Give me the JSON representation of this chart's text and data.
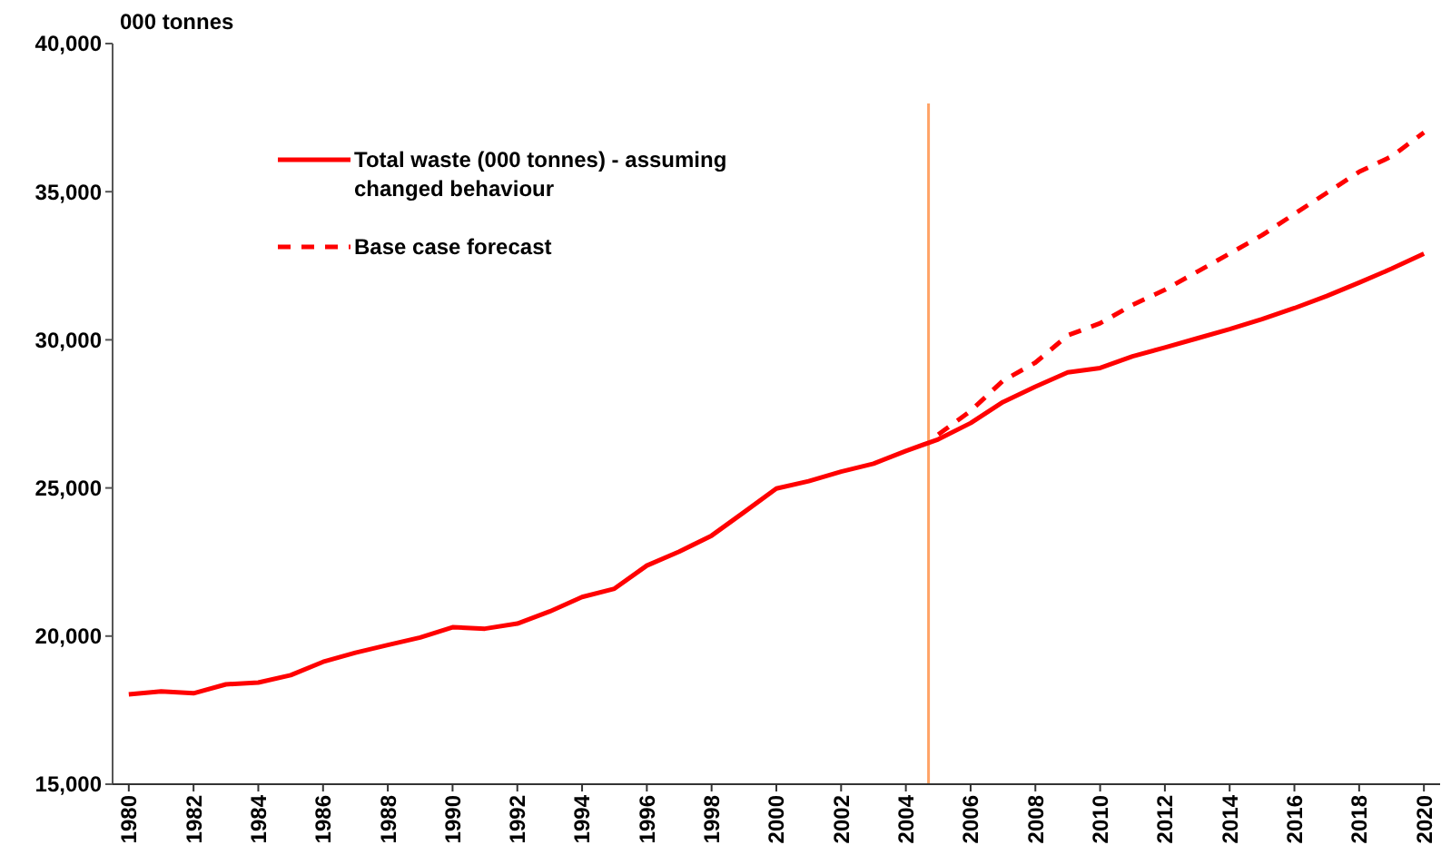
{
  "chart_data": {
    "type": "line",
    "ylabel": "000 tonnes",
    "x": [
      1980,
      1981,
      1982,
      1983,
      1984,
      1985,
      1986,
      1987,
      1988,
      1989,
      1990,
      1991,
      1992,
      1993,
      1994,
      1995,
      1996,
      1997,
      1998,
      1999,
      2000,
      2001,
      2002,
      2003,
      2004,
      2005,
      2006,
      2007,
      2008,
      2009,
      2010,
      2011,
      2012,
      2013,
      2014,
      2015,
      2016,
      2017,
      2018,
      2019,
      2020
    ],
    "series": [
      {
        "name": "Total waste (000 tonnes) - assuming changed behaviour",
        "color": "#ff0000",
        "line_style": "solid",
        "values": [
          18030,
          18130,
          18070,
          18370,
          18430,
          18680,
          19130,
          19440,
          19700,
          19950,
          20300,
          20250,
          20420,
          20830,
          21320,
          21600,
          22380,
          22850,
          23390,
          24180,
          24980,
          25230,
          25550,
          25820,
          26250,
          26640,
          27190,
          27900,
          28420,
          28900,
          29050,
          29440,
          29740,
          30050,
          30360,
          30700,
          31070,
          31480,
          31930,
          32400,
          32910
        ]
      },
      {
        "name": "Base case forecast",
        "color": "#ff0000",
        "line_style": "dashed",
        "x": [
          2005,
          2006,
          2007,
          2008,
          2009,
          2010,
          2011,
          2012,
          2013,
          2014,
          2015,
          2016,
          2017,
          2018,
          2019,
          2020
        ],
        "values": [
          26800,
          27600,
          28620,
          29230,
          30150,
          30560,
          31180,
          31690,
          32300,
          32910,
          33530,
          34250,
          34960,
          35670,
          36190,
          37000
        ]
      }
    ],
    "xlim": [
      1979.5,
      2020.5
    ],
    "xticks": [
      {
        "value": 1980,
        "label": "1980"
      },
      {
        "value": 1982,
        "label": "1982"
      },
      {
        "value": 1984,
        "label": "1984"
      },
      {
        "value": 1986,
        "label": "1986"
      },
      {
        "value": 1988,
        "label": "1988"
      },
      {
        "value": 1990,
        "label": "1990"
      },
      {
        "value": 1992,
        "label": "1992"
      },
      {
        "value": 1994,
        "label": "1994"
      },
      {
        "value": 1996,
        "label": "1996"
      },
      {
        "value": 1998,
        "label": "1998"
      },
      {
        "value": 2000,
        "label": "2000"
      },
      {
        "value": 2002,
        "label": "2002"
      },
      {
        "value": 2004,
        "label": "2004"
      },
      {
        "value": 2006,
        "label": "2006"
      },
      {
        "value": 2008,
        "label": "2008"
      },
      {
        "value": 2010,
        "label": "2010"
      },
      {
        "value": 2012,
        "label": "2012"
      },
      {
        "value": 2014,
        "label": "2014"
      },
      {
        "value": 2016,
        "label": "2016"
      },
      {
        "value": 2018,
        "label": "2018"
      },
      {
        "value": 2020,
        "label": "2020"
      }
    ],
    "ylim": [
      15000,
      40000
    ],
    "yticks": [
      {
        "value": 15000,
        "label": "15,000"
      },
      {
        "value": 20000,
        "label": "20,000"
      },
      {
        "value": 25000,
        "label": "25,000"
      },
      {
        "value": 30000,
        "label": "30,000"
      },
      {
        "value": 35000,
        "label": "35,000"
      },
      {
        "value": 40000,
        "label": "40,000"
      }
    ],
    "ref_lines": [
      {
        "axis": "x",
        "value": 2004.7,
        "color": "#ffa366"
      }
    ],
    "grid": false,
    "legend": "top left",
    "marker": "none"
  }
}
